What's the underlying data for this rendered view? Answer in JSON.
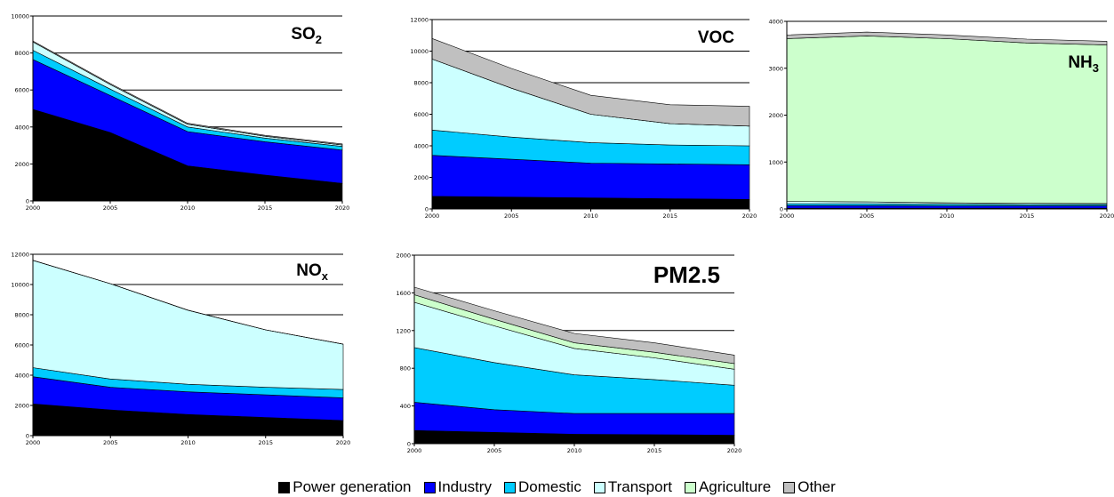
{
  "legend": {
    "items": [
      {
        "label": "Power generation",
        "color": "#000000"
      },
      {
        "label": "Industry",
        "color": "#0000ff"
      },
      {
        "label": "Domestic",
        "color": "#00ccff"
      },
      {
        "label": "Transport",
        "color": "#ccffff"
      },
      {
        "label": "Agriculture",
        "color": "#ccffcc"
      },
      {
        "label": "Other",
        "color": "#c0c0c0"
      }
    ]
  },
  "chart_data": [
    {
      "type": "area",
      "stacked": true,
      "title": "SO2",
      "title_main": "SO",
      "title_sub": "2",
      "x": [
        2000,
        2005,
        2010,
        2015,
        2020
      ],
      "ylim": [
        0,
        10000
      ],
      "yticks": [
        0,
        2000,
        4000,
        6000,
        8000,
        10000
      ],
      "series": [
        {
          "name": "Power generation",
          "values": [
            4950,
            3700,
            1900,
            1400,
            950
          ]
        },
        {
          "name": "Industry",
          "values": [
            2700,
            2000,
            1850,
            1800,
            1800
          ]
        },
        {
          "name": "Domestic",
          "values": [
            500,
            350,
            250,
            200,
            200
          ]
        },
        {
          "name": "Transport",
          "values": [
            450,
            250,
            150,
            100,
            80
          ]
        },
        {
          "name": "Agriculture",
          "values": [
            0,
            0,
            0,
            0,
            0
          ]
        },
        {
          "name": "Other",
          "values": [
            50,
            50,
            50,
            50,
            50
          ]
        }
      ]
    },
    {
      "type": "area",
      "stacked": true,
      "title": "VOC",
      "title_main": "VOC",
      "title_sub": "",
      "x": [
        2000,
        2005,
        2010,
        2015,
        2020
      ],
      "ylim": [
        0,
        12000
      ],
      "yticks": [
        0,
        2000,
        4000,
        6000,
        8000,
        10000,
        12000
      ],
      "series": [
        {
          "name": "Power generation",
          "values": [
            800,
            750,
            700,
            650,
            600
          ]
        },
        {
          "name": "Industry",
          "values": [
            2600,
            2400,
            2200,
            2200,
            2200
          ]
        },
        {
          "name": "Domestic",
          "values": [
            1600,
            1400,
            1300,
            1200,
            1200
          ]
        },
        {
          "name": "Transport",
          "values": [
            4500,
            3100,
            1800,
            1350,
            1250
          ]
        },
        {
          "name": "Agriculture",
          "values": [
            0,
            0,
            0,
            0,
            0
          ]
        },
        {
          "name": "Other",
          "values": [
            1300,
            1250,
            1200,
            1200,
            1250
          ]
        }
      ]
    },
    {
      "type": "area",
      "stacked": true,
      "title": "NH3",
      "title_main": "NH",
      "title_sub": "3",
      "x": [
        2000,
        2005,
        2010,
        2015,
        2020
      ],
      "ylim": [
        0,
        4000
      ],
      "yticks": [
        0,
        1000,
        2000,
        3000,
        4000
      ],
      "series": [
        {
          "name": "Power generation",
          "values": [
            15,
            15,
            15,
            15,
            15
          ]
        },
        {
          "name": "Industry",
          "values": [
            55,
            55,
            50,
            50,
            50
          ]
        },
        {
          "name": "Domestic",
          "values": [
            40,
            40,
            35,
            30,
            30
          ]
        },
        {
          "name": "Transport",
          "values": [
            50,
            40,
            30,
            25,
            20
          ]
        },
        {
          "name": "Agriculture",
          "values": [
            3470,
            3540,
            3500,
            3420,
            3380
          ]
        },
        {
          "name": "Other",
          "values": [
            80,
            80,
            80,
            80,
            80
          ]
        }
      ]
    },
    {
      "type": "area",
      "stacked": true,
      "title": "NOx",
      "title_main": "NO",
      "title_sub": "x",
      "x": [
        2000,
        2005,
        2010,
        2015,
        2020
      ],
      "ylim": [
        0,
        12000
      ],
      "yticks": [
        0,
        2000,
        4000,
        6000,
        8000,
        10000,
        12000
      ],
      "series": [
        {
          "name": "Power generation",
          "values": [
            2100,
            1700,
            1400,
            1200,
            1000
          ]
        },
        {
          "name": "Industry",
          "values": [
            1800,
            1500,
            1500,
            1500,
            1500
          ]
        },
        {
          "name": "Domestic",
          "values": [
            600,
            550,
            500,
            500,
            550
          ]
        },
        {
          "name": "Transport",
          "values": [
            7100,
            6300,
            4900,
            3800,
            3000
          ]
        },
        {
          "name": "Agriculture",
          "values": [
            0,
            0,
            0,
            0,
            0
          ]
        },
        {
          "name": "Other",
          "values": [
            0,
            0,
            0,
            0,
            0
          ]
        }
      ]
    },
    {
      "type": "area",
      "stacked": true,
      "title": "PM2.5",
      "title_main": "PM2.5",
      "title_sub": "",
      "x": [
        2000,
        2005,
        2010,
        2015,
        2020
      ],
      "ylim": [
        0,
        2000
      ],
      "yticks": [
        0,
        400,
        800,
        1200,
        1600,
        2000
      ],
      "series": [
        {
          "name": "Power generation",
          "values": [
            140,
            120,
            100,
            95,
            90
          ]
        },
        {
          "name": "Industry",
          "values": [
            300,
            240,
            220,
            225,
            230
          ]
        },
        {
          "name": "Domestic",
          "values": [
            580,
            500,
            410,
            360,
            300
          ]
        },
        {
          "name": "Transport",
          "values": [
            480,
            390,
            280,
            230,
            170
          ]
        },
        {
          "name": "Agriculture",
          "values": [
            80,
            70,
            60,
            60,
            60
          ]
        },
        {
          "name": "Other",
          "values": [
            80,
            90,
            100,
            100,
            90
          ]
        }
      ]
    }
  ]
}
